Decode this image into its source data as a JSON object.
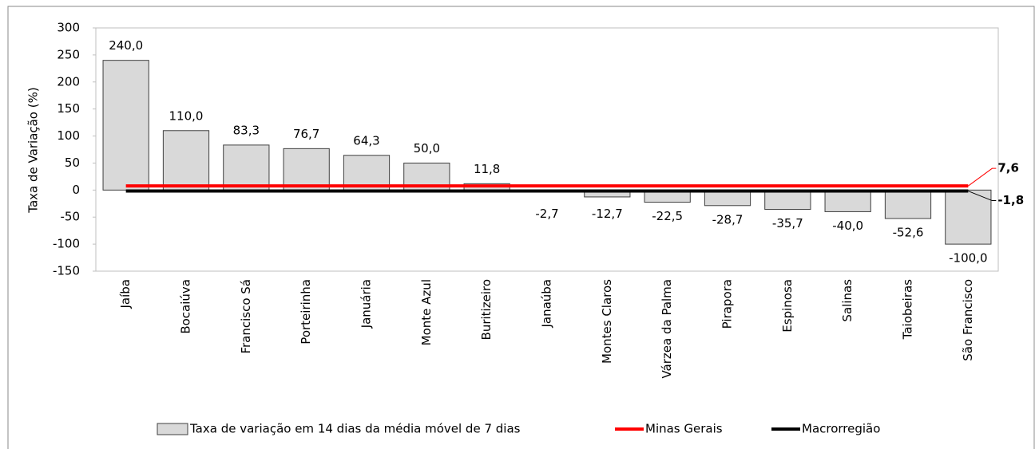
{
  "chart_data": {
    "type": "bar",
    "y_label": "Taxa de Variação (%)",
    "categories": [
      "Jaíba",
      "Bocaiúva",
      "Francisco Sá",
      "Porteirinha",
      "Januária",
      "Monte Azul",
      "Buritizeiro",
      "Janaúba",
      "Montes Claros",
      "Várzea da Palma",
      "Pirapora",
      "Espinosa",
      "Salinas",
      "Taiobeiras",
      "São Francisco"
    ],
    "series": [
      {
        "name": "Taxa de variação em 14 dias da média móvel de 7 dias",
        "color": "#d9d9d9",
        "values": [
          240.0,
          110.0,
          83.3,
          76.7,
          64.3,
          50.0,
          11.8,
          -2.7,
          -12.7,
          -22.5,
          -28.7,
          -35.7,
          -40.0,
          -52.6,
          -100.0
        ],
        "value_labels": [
          "240,0",
          "110,0",
          "83,3",
          "76,7",
          "64,3",
          "50,0",
          "11,8",
          "-2,7",
          "-12,7",
          "-22,5",
          "-28,7",
          "-35,7",
          "-40,0",
          "-52,6",
          "-100,0"
        ]
      }
    ],
    "reference_lines": [
      {
        "name": "Minas Gerais",
        "color": "#ff0000",
        "value": 7.6,
        "value_label": "7,6"
      },
      {
        "name": "Macrorregião",
        "color": "#000000",
        "value": -1.8,
        "value_label": "-1,8"
      }
    ],
    "ylim": [
      -150,
      300
    ],
    "yticks": [
      -150,
      -100,
      -50,
      0,
      50,
      100,
      150,
      200,
      250,
      300
    ]
  }
}
